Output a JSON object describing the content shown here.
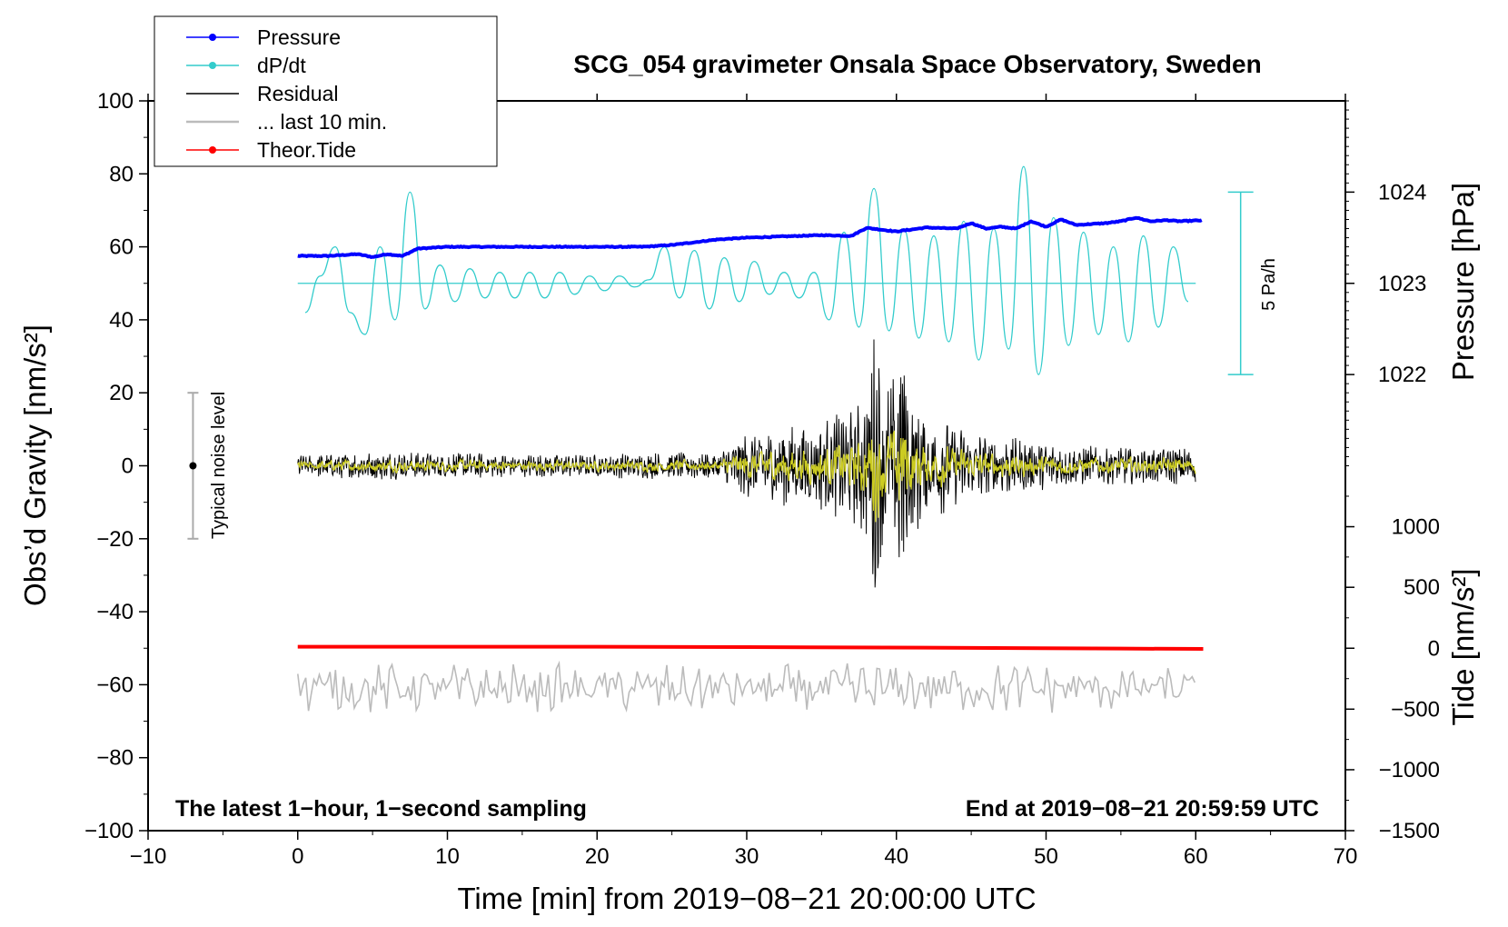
{
  "chart_data": {
    "type": "line",
    "title": "SCG_054 gravimeter Onsala Space Observatory, Sweden",
    "xlabel": "Time [min] from 2019−08−21 20:00:00 UTC",
    "ylabel": "Obs’d Gravity [nm/s²]",
    "ylabel_right_top": "Pressure [hPa]",
    "ylabel_right_bottom": "Tide [nm/s²]",
    "xlim": [
      -10,
      70
    ],
    "ylim": [
      -100,
      100
    ],
    "x_ticks": [
      -10,
      0,
      10,
      20,
      30,
      40,
      50,
      60,
      70
    ],
    "x_tick_labels": [
      "−10",
      "0",
      "10",
      "20",
      "30",
      "40",
      "50",
      "60",
      "70"
    ],
    "y_ticks": [
      -100,
      -80,
      -60,
      -40,
      -20,
      0,
      20,
      40,
      60,
      80,
      100
    ],
    "y_tick_labels": [
      "−100",
      "−80",
      "−60",
      "−40",
      "−20",
      "0",
      "20",
      "40",
      "60",
      "80",
      "100"
    ],
    "pressure_axis": {
      "ticks": [
        {
          "value": 1024,
          "at_gravity": 75,
          "label": "1024"
        },
        {
          "value": 1023,
          "at_gravity": 50,
          "label": "1023"
        },
        {
          "value": 1022,
          "at_gravity": 25,
          "label": "1022"
        }
      ]
    },
    "tide_axis": {
      "ticks": [
        {
          "value": 1000,
          "at_gravity": -16.7,
          "label": "1000"
        },
        {
          "value": 500,
          "at_gravity": -33.3,
          "label": "500"
        },
        {
          "value": 0,
          "at_gravity": -50,
          "label": "0"
        },
        {
          "value": -500,
          "at_gravity": -66.7,
          "label": "−500"
        },
        {
          "value": -1000,
          "at_gravity": -83.3,
          "label": "−1000"
        },
        {
          "value": -1500,
          "at_gravity": -100,
          "label": "−1500"
        }
      ]
    },
    "legend": {
      "position": "top-left",
      "entries": [
        {
          "label": "Pressure",
          "color": "#0000ff",
          "marker": true
        },
        {
          "label": "dP/dt",
          "color": "#33cccc",
          "marker": true
        },
        {
          "label": "Residual",
          "color": "#000000",
          "marker": false
        },
        {
          "label": "... last 10 min.",
          "color": "#bbbbbb",
          "marker": false
        },
        {
          "label": "Theor.Tide",
          "color": "#ff0000",
          "marker": true
        }
      ]
    },
    "series": [
      {
        "name": "Pressure",
        "color": "#0000ff",
        "x": [
          0,
          2,
          4,
          5,
          6,
          7,
          8,
          10,
          15,
          20,
          23,
          25,
          28,
          30,
          35,
          37,
          38,
          40,
          42,
          44,
          45,
          46,
          47,
          48,
          49,
          50,
          51,
          52,
          54,
          55,
          56,
          57,
          58,
          59,
          60,
          60.5
        ],
        "y": [
          57.5,
          57.5,
          58,
          57.2,
          58,
          57.5,
          59.5,
          60,
          60,
          60,
          60,
          60.5,
          62,
          62.5,
          63.2,
          63,
          65.2,
          64.2,
          65.3,
          65,
          66.5,
          65,
          65.5,
          65,
          67,
          65.5,
          67.5,
          66,
          66.5,
          67,
          68,
          67,
          67.3,
          67,
          67.2,
          67.2
        ]
      },
      {
        "name": "dP/dt",
        "color": "#33cccc",
        "baseline": 50,
        "x": [
          0.5,
          1.5,
          2.5,
          3.5,
          4.5,
          5.5,
          6.5,
          7.5,
          8.5,
          9.5,
          10.5,
          11.5,
          12.5,
          13.5,
          14.5,
          15.5,
          16.5,
          17.5,
          18.5,
          19.5,
          20.5,
          21.5,
          22.5,
          23.5,
          24.5,
          25.5,
          26.5,
          27.5,
          28.5,
          29.5,
          30.5,
          31.5,
          32.5,
          33.5,
          34.5,
          35.5,
          36.5,
          37.5,
          38.5,
          39.5,
          40.5,
          41.5,
          42.5,
          43.5,
          44.5,
          45.5,
          46.5,
          47.5,
          48.5,
          49.5,
          50.5,
          51.5,
          52.5,
          53.5,
          54.5,
          55.5,
          56.5,
          57.5,
          58.5,
          59.5
        ],
        "y": [
          42,
          52,
          60,
          42,
          36,
          60,
          40,
          75,
          43,
          55,
          45,
          54,
          46,
          53,
          46,
          53,
          46,
          53,
          47,
          52,
          48,
          52,
          49,
          51,
          60,
          46,
          59,
          43,
          57,
          45,
          56,
          47,
          53,
          46,
          53,
          40,
          64,
          38,
          76,
          37,
          65,
          35,
          63,
          34,
          67,
          29,
          65,
          32,
          82,
          25,
          68,
          33,
          64,
          36,
          60,
          34,
          63,
          38,
          60,
          45
        ]
      },
      {
        "name": "Residual",
        "color": "#000000",
        "x": [
          0,
          5,
          10,
          15,
          20,
          25,
          28,
          30,
          33,
          35,
          37,
          38,
          38.5,
          39,
          39.5,
          40,
          40.5,
          41,
          42,
          44,
          46,
          50,
          55,
          60
        ],
        "amplitude": [
          2.5,
          3,
          3,
          2.5,
          2.5,
          3,
          3,
          7,
          9,
          10,
          12,
          16,
          32,
          20,
          18,
          20,
          33,
          16,
          12,
          9,
          7,
          5,
          4,
          4
        ]
      },
      {
        "name": "... last 10 min.",
        "color": "#bbbbbb",
        "x": [
          0,
          60
        ],
        "y": [
          -61,
          -61
        ],
        "amplitude": 5
      },
      {
        "name": "Theor.Tide",
        "color": "#ff0000",
        "x": [
          0,
          20,
          30,
          45,
          55,
          60.5
        ],
        "y": [
          -49.6,
          -49.6,
          -49.7,
          -49.9,
          -50.1,
          -50.2
        ]
      }
    ],
    "noise_bar": {
      "label": "Typical noise level",
      "x": -7,
      "center": 0,
      "low": -20,
      "high": 20
    },
    "dpdt_scale_bar": {
      "label": "5 Pa/h",
      "x": 63,
      "low": 25,
      "high": 75
    },
    "annotations": [
      {
        "text": "The latest 1−hour, 1−second sampling",
        "position": "bottom-left"
      },
      {
        "text": "End at 2019−08−21 20:59:59 UTC",
        "position": "bottom-right"
      }
    ]
  }
}
